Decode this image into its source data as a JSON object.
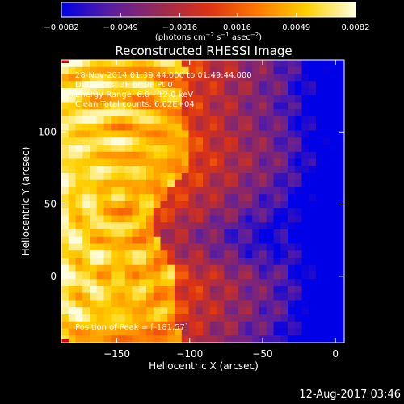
{
  "chart_data": {
    "type": "heatmap",
    "title": "Reconstructed RHESSI Image",
    "xlabel": "Heliocentric X (arcsec)",
    "ylabel": "Heliocentric Y (arcsec)",
    "xlim": [
      -188,
      6
    ],
    "ylim": [
      -46,
      150
    ],
    "xticks": [
      -150,
      -100,
      -50,
      0
    ],
    "yticks": [
      0,
      50,
      100
    ],
    "xtick_labels": [
      "−150",
      "−100",
      "−50",
      "0"
    ],
    "ytick_labels": [
      "0",
      "50",
      "100"
    ],
    "colorbar": {
      "min": -0.0082,
      "max": 0.0082,
      "ticks": [
        -0.0082,
        -0.0049,
        -0.0016,
        0.0016,
        0.0049,
        0.0082
      ],
      "tick_labels": [
        "−0.0082",
        "−0.0049",
        "−0.0016",
        "0.0016",
        "0.0049",
        "0.0082"
      ],
      "unit_parts": [
        "(photons cm",
        "−2",
        " s",
        "−1",
        " asec",
        "−2",
        ")"
      ]
    },
    "annotations": [
      "28-Nov-2014 01:39:44.000 to 01:49:44.000",
      "Detectors: 3F 6F 9F  Pt 0",
      "Energy Range: 6.0 - 12.0 keV",
      "Clean    Total counts: 6.62E+04"
    ],
    "peak_label": "Position of Peak = [-181,57]",
    "peak": {
      "x": -181,
      "y": 57
    },
    "colormap": [
      "#0000e6",
      "#5a1ea0",
      "#9a2a55",
      "#dc3214",
      "#ff7800",
      "#ffd200",
      "#ffffe0"
    ]
  },
  "footer": {
    "timestamp": "12-Aug-2017 03:46"
  }
}
